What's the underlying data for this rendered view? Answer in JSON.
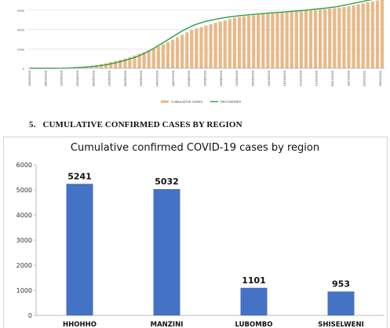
{
  "section": {
    "number": "5.",
    "title": "CUMULATIVE CONFIRMED CASES BY REGION"
  },
  "colors": {
    "cumulative_bars": "#e8b98a",
    "recoveries_line": "#2ea043",
    "region_bars": "#4472c4",
    "gridline": "#d0d0d0"
  },
  "chart_data": [
    {
      "type": "bar",
      "title": "",
      "legend": [
        {
          "name": "CUMULATIVE CASES",
          "color": "#e8b98a",
          "marker": "bar"
        },
        {
          "name": "RECOVERIES",
          "color": "#2ea043",
          "marker": "line"
        }
      ],
      "legend_position": "bottom-center",
      "y_ticks": [
        "0",
        "2000",
        "4000",
        "6000"
      ],
      "ylim": [
        0,
        6800
      ],
      "grid": true,
      "x_tick_labels": [
        "14/03/2020",
        "28/03/2020",
        "11/04/2020",
        "25/04/2020",
        "09/05/2020",
        "23/05/2020",
        "06/06/2020",
        "20/06/2020",
        "04/07/2020",
        "18/07/2020",
        "01/08/2020",
        "15/08/2020",
        "29/08/2020",
        "12/09/2020",
        "26/09/2020",
        "10/10/2020",
        "24/10/2020",
        "07/11/2020",
        "21/11/2020",
        "05/12/2020",
        "19/12/2020",
        "02/01/2021",
        "16/01/2021"
      ],
      "series": [
        {
          "name": "CUMULATIVE CASES",
          "values": [
            1,
            2,
            5,
            9,
            14,
            20,
            30,
            45,
            60,
            80,
            110,
            150,
            200,
            260,
            330,
            420,
            520,
            640,
            760,
            880,
            1000,
            1150,
            1320,
            1500,
            1680,
            1850,
            2050,
            2250,
            2480,
            2700,
            2950,
            3200,
            3450,
            3700,
            3950,
            4100,
            4250,
            4400,
            4550,
            4700,
            4820,
            4950,
            5080,
            5200,
            5280,
            5350,
            5420,
            5480,
            5530,
            5580,
            5620,
            5660,
            5700,
            5740,
            5780,
            5820,
            5860,
            5900,
            5940,
            5980,
            6020,
            6060,
            6100,
            6150,
            6200,
            6260,
            6320,
            6400,
            6500,
            6600,
            6700,
            6800,
            6900,
            7000,
            7100
          ]
        },
        {
          "name": "RECOVERIES",
          "values": [
            0,
            0,
            0,
            1,
            2,
            4,
            6,
            10,
            20,
            40,
            70,
            100,
            140,
            180,
            230,
            290,
            360,
            450,
            560,
            680,
            820,
            960,
            1120,
            1300,
            1520,
            1780,
            2050,
            2350,
            2650,
            2950,
            3250,
            3550,
            3850,
            4100,
            4350,
            4550,
            4700,
            4850,
            4950,
            5050,
            5150,
            5230,
            5300,
            5360,
            5420,
            5470,
            5520,
            5560,
            5600,
            5640,
            5680,
            5720,
            5760,
            5800,
            5840,
            5880,
            5920,
            5960,
            6000,
            6050,
            6100,
            6150,
            6200,
            6260,
            6320,
            6400,
            6500,
            6600,
            6700,
            6800,
            6900,
            7000,
            7100,
            7200,
            7300
          ]
        }
      ]
    },
    {
      "type": "bar",
      "title": "Cumulative confirmed COVID-19 cases by region",
      "categories": [
        "HHOHHO",
        "MANZINI",
        "LUBOMBO",
        "SHISELWENI"
      ],
      "values": [
        5241,
        5032,
        1101,
        953
      ],
      "data_labels": [
        "5241",
        "5032",
        "1101",
        "953"
      ],
      "y_ticks": [
        "0",
        "1000",
        "2000",
        "3000",
        "4000",
        "5000",
        "6000"
      ],
      "ylim": [
        0,
        6000
      ],
      "xlabel": "",
      "ylabel": "",
      "grid": false
    }
  ]
}
